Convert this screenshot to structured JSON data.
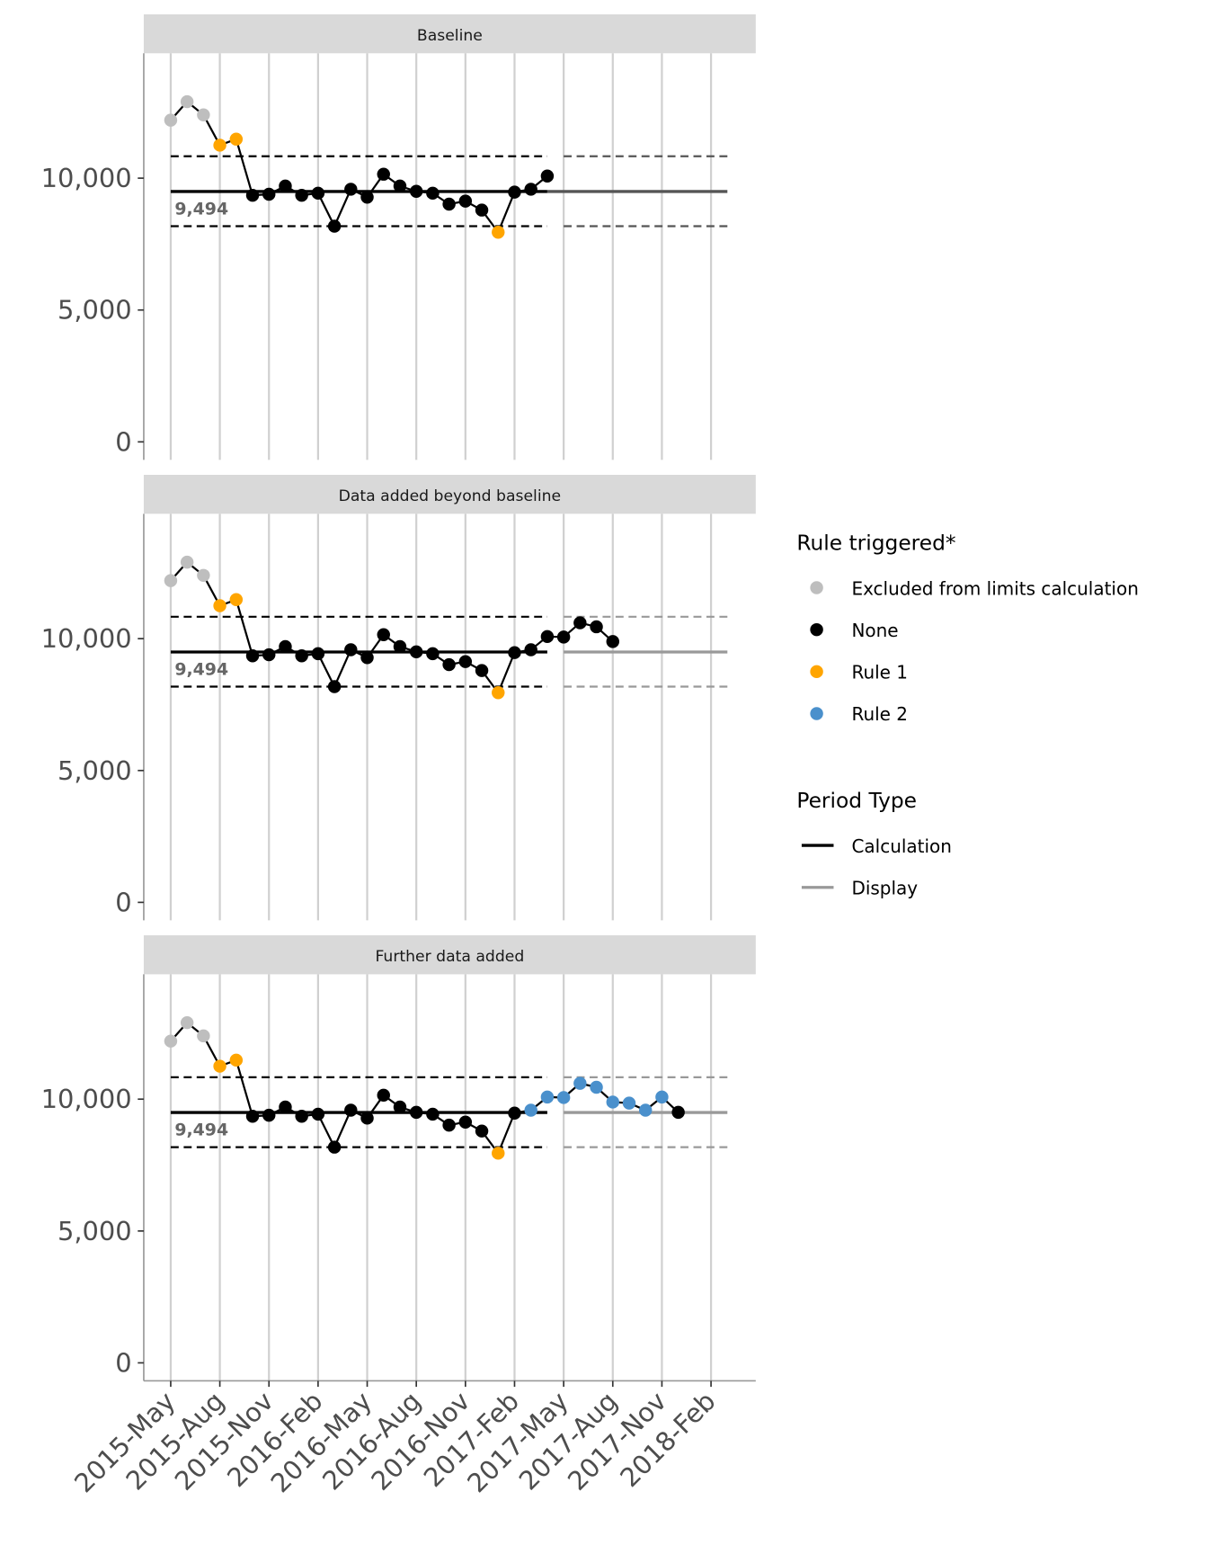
{
  "chart_data": {
    "type": "line",
    "title": "",
    "xlabel": "",
    "ylabel": "",
    "ylim": [
      0,
      14500
    ],
    "y_ticks": [
      0,
      5000,
      10000
    ],
    "y_tick_labels": [
      "0",
      "5,000",
      "10,000"
    ],
    "x_tick_labels": [
      "2015-May",
      "2015-Aug",
      "2015-Nov",
      "2016-Feb",
      "2016-May",
      "2016-Aug",
      "2016-Nov",
      "2017-Feb",
      "2017-May",
      "2017-Aug",
      "2017-Nov",
      "2018-Feb"
    ],
    "months": [
      "2015-05",
      "2015-06",
      "2015-07",
      "2015-08",
      "2015-09",
      "2015-10",
      "2015-11",
      "2015-12",
      "2016-01",
      "2016-02",
      "2016-03",
      "2016-04",
      "2016-05",
      "2016-06",
      "2016-07",
      "2016-08",
      "2016-09",
      "2016-10",
      "2016-11",
      "2016-12",
      "2017-01",
      "2017-02",
      "2017-03",
      "2017-04",
      "2017-05",
      "2017-06",
      "2017-07",
      "2017-08",
      "2017-09",
      "2017-10",
      "2017-11",
      "2017-12"
    ],
    "values": [
      12200,
      12900,
      12400,
      11250,
      11480,
      9350,
      9390,
      9700,
      9350,
      9430,
      8180,
      9580,
      9280,
      10150,
      9700,
      9500,
      9430,
      9015,
      9130,
      8790,
      7950,
      9470,
      9580,
      10080,
      10060,
      10600,
      10450,
      9890,
      9850,
      9580,
      10080,
      9500
    ],
    "centre_line": 9494,
    "centre_label": "9,494",
    "ucl": 10830,
    "lcl": 8180,
    "calculation_period": [
      "2015-05",
      "2017-04"
    ],
    "display_period": [
      "2017-05",
      "2018-03"
    ],
    "panels": [
      {
        "title": "Baseline",
        "n_points": 24,
        "rules": [
          "excl",
          "excl",
          "excl",
          "r1",
          "r1",
          "none",
          "none",
          "none",
          "none",
          "none",
          "none",
          "none",
          "none",
          "none",
          "none",
          "none",
          "none",
          "none",
          "none",
          "none",
          "r1",
          "none",
          "none",
          "none"
        ]
      },
      {
        "title": "Data added beyond baseline",
        "n_points": 28,
        "rules": [
          "excl",
          "excl",
          "excl",
          "r1",
          "r1",
          "none",
          "none",
          "none",
          "none",
          "none",
          "none",
          "none",
          "none",
          "none",
          "none",
          "none",
          "none",
          "none",
          "none",
          "none",
          "r1",
          "none",
          "none",
          "none",
          "none",
          "none",
          "none",
          "none"
        ]
      },
      {
        "title": "Further data added",
        "n_points": 32,
        "rules": [
          "excl",
          "excl",
          "excl",
          "r1",
          "r1",
          "none",
          "none",
          "none",
          "none",
          "none",
          "none",
          "none",
          "none",
          "none",
          "none",
          "none",
          "none",
          "none",
          "none",
          "none",
          "r1",
          "none",
          "r2",
          "r2",
          "r2",
          "r2",
          "r2",
          "r2",
          "r2",
          "r2",
          "r2",
          "none"
        ]
      }
    ],
    "legend": {
      "rule_title": "Rule triggered*",
      "rules": [
        {
          "key": "excl",
          "label": "Excluded from limits calculation",
          "color": "#bebebe"
        },
        {
          "key": "none",
          "label": "None",
          "color": "#000000"
        },
        {
          "key": "r1",
          "label": "Rule 1",
          "color": "#ffa500"
        },
        {
          "key": "r2",
          "label": "Rule 2",
          "color": "#4a90cc"
        }
      ],
      "period_title": "Period Type",
      "periods": [
        {
          "label": "Calculation",
          "color": "#000000"
        },
        {
          "label": "Display",
          "color": "#999999"
        }
      ],
      "placement": "right"
    }
  }
}
